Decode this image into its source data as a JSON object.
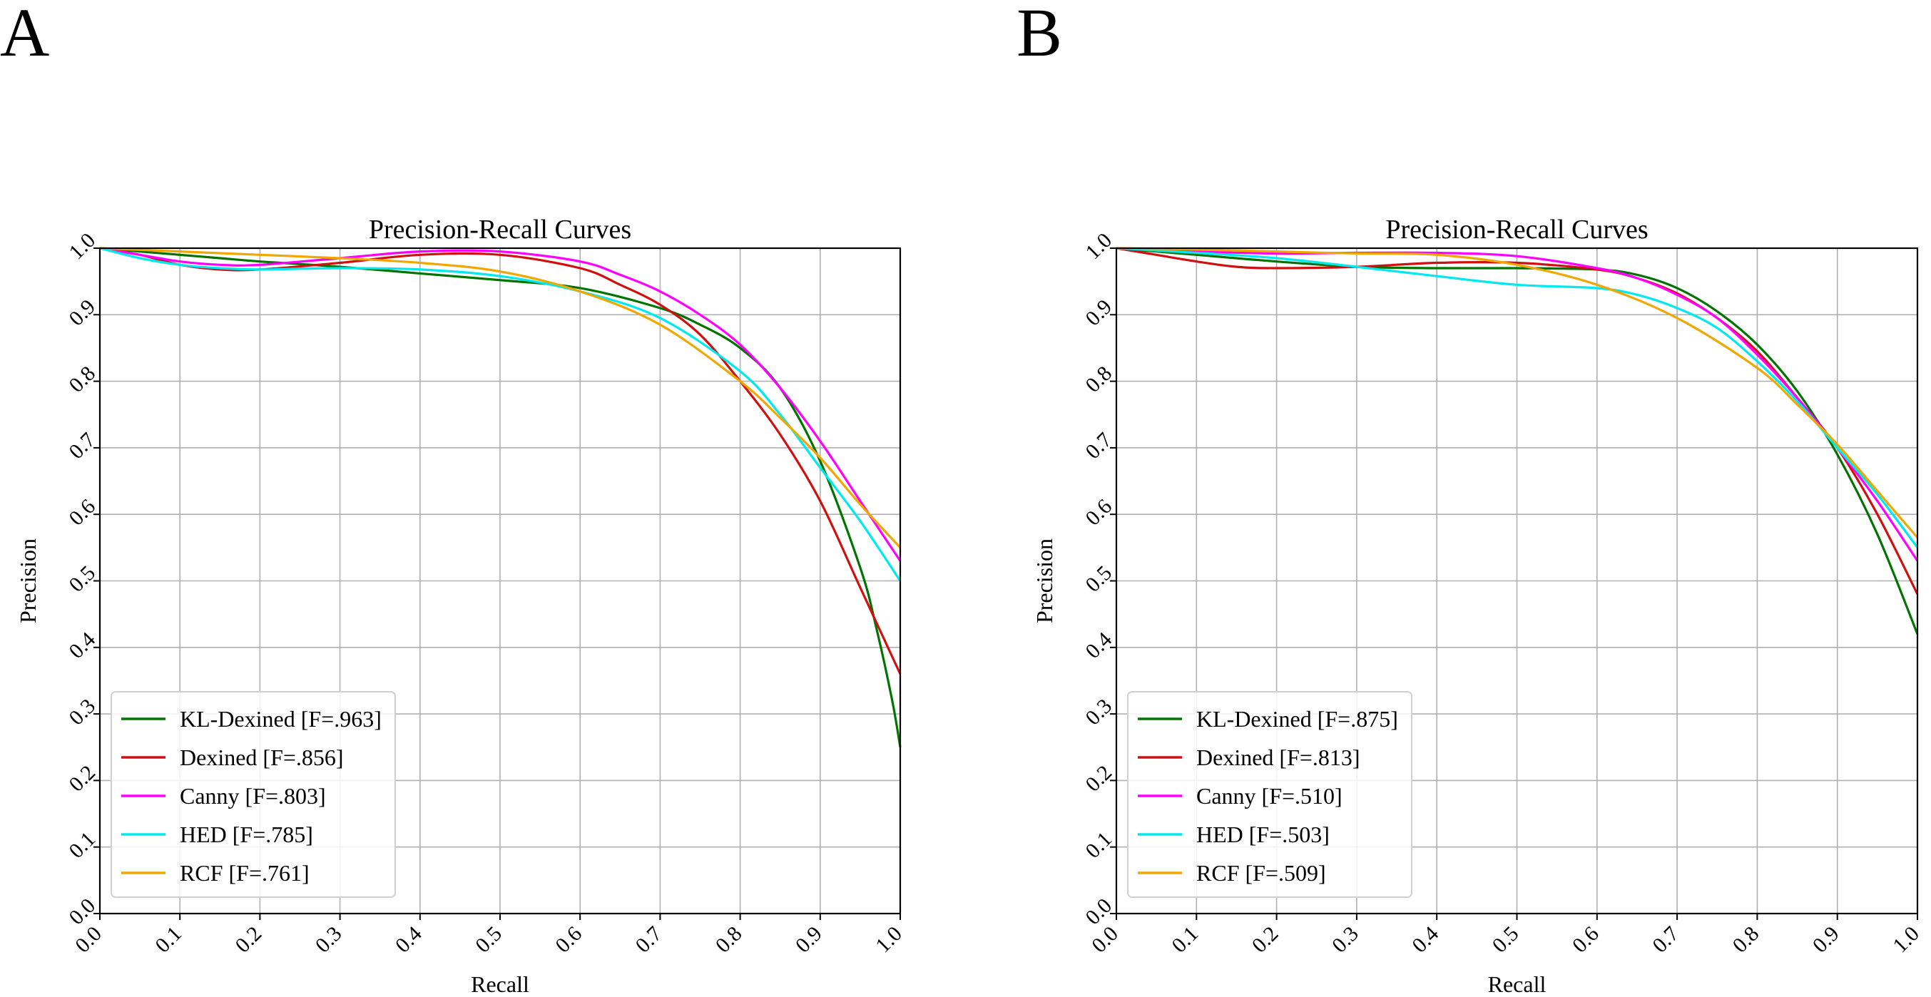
{
  "panels": {
    "a": "A",
    "b": "B"
  },
  "chart_data": [
    {
      "type": "line",
      "panel": "A",
      "title": "Precision-Recall Curves",
      "xlabel": "Recall",
      "ylabel": "Precision",
      "xlim": [
        0.0,
        1.0
      ],
      "ylim": [
        0.0,
        1.0
      ],
      "xticks": [
        "0.0",
        "0.1",
        "0.2",
        "0.3",
        "0.4",
        "0.5",
        "0.6",
        "0.7",
        "0.8",
        "0.9",
        "1.0"
      ],
      "yticks": [
        "0.0",
        "0.1",
        "0.2",
        "0.3",
        "0.4",
        "0.5",
        "0.6",
        "0.7",
        "0.8",
        "0.9",
        "1.0"
      ],
      "grid": true,
      "legend_position": "lower-left",
      "series": [
        {
          "name": "KL-Dexined [F=.963]",
          "color": "#007300",
          "x": [
            0,
            0.05,
            0.1,
            0.15,
            0.2,
            0.3,
            0.4,
            0.5,
            0.6,
            0.7,
            0.75,
            0.8,
            0.85,
            0.9,
            0.95,
            0.97,
            0.99,
            1.0
          ],
          "y": [
            1.0,
            0.995,
            0.99,
            0.985,
            0.98,
            0.972,
            0.962,
            0.952,
            0.94,
            0.91,
            0.885,
            0.85,
            0.79,
            0.68,
            0.52,
            0.43,
            0.32,
            0.25
          ]
        },
        {
          "name": "Dexined [F=.856]",
          "color": "#d01010",
          "x": [
            0,
            0.05,
            0.1,
            0.15,
            0.2,
            0.3,
            0.4,
            0.5,
            0.6,
            0.65,
            0.7,
            0.75,
            0.8,
            0.85,
            0.9,
            0.95,
            1.0
          ],
          "y": [
            1.0,
            0.99,
            0.975,
            0.968,
            0.968,
            0.978,
            0.99,
            0.99,
            0.97,
            0.945,
            0.915,
            0.87,
            0.8,
            0.72,
            0.62,
            0.49,
            0.36
          ]
        },
        {
          "name": "Canny [F=.803]",
          "color": "#ff00ff",
          "x": [
            0,
            0.05,
            0.1,
            0.15,
            0.2,
            0.3,
            0.4,
            0.5,
            0.6,
            0.65,
            0.7,
            0.75,
            0.8,
            0.85,
            0.9,
            0.95,
            1.0
          ],
          "y": [
            1.0,
            0.99,
            0.98,
            0.975,
            0.975,
            0.985,
            0.995,
            0.995,
            0.98,
            0.96,
            0.935,
            0.9,
            0.855,
            0.79,
            0.71,
            0.62,
            0.53
          ]
        },
        {
          "name": "HED [F=.785]",
          "color": "#00e8f0",
          "x": [
            0,
            0.05,
            0.1,
            0.15,
            0.2,
            0.3,
            0.4,
            0.5,
            0.6,
            0.7,
            0.8,
            0.85,
            0.9,
            0.95,
            1.0
          ],
          "y": [
            1.0,
            0.985,
            0.975,
            0.97,
            0.968,
            0.97,
            0.968,
            0.958,
            0.935,
            0.895,
            0.815,
            0.75,
            0.67,
            0.59,
            0.5
          ]
        },
        {
          "name": "RCF [F=.761]",
          "color": "#f0a800",
          "x": [
            0,
            0.1,
            0.2,
            0.3,
            0.4,
            0.5,
            0.6,
            0.7,
            0.8,
            0.85,
            0.9,
            0.95,
            1.0
          ],
          "y": [
            1.0,
            0.995,
            0.99,
            0.985,
            0.978,
            0.965,
            0.935,
            0.885,
            0.8,
            0.745,
            0.685,
            0.615,
            0.55
          ]
        }
      ]
    },
    {
      "type": "line",
      "panel": "B",
      "title": "Precision-Recall Curves",
      "xlabel": "Recall",
      "ylabel": "Precision",
      "xlim": [
        0.0,
        1.0
      ],
      "ylim": [
        0.0,
        1.0
      ],
      "xticks": [
        "0.0",
        "0.1",
        "0.2",
        "0.3",
        "0.4",
        "0.5",
        "0.6",
        "0.7",
        "0.8",
        "0.9",
        "1.0"
      ],
      "yticks": [
        "0.0",
        "0.1",
        "0.2",
        "0.3",
        "0.4",
        "0.5",
        "0.6",
        "0.7",
        "0.8",
        "0.9",
        "1.0"
      ],
      "grid": true,
      "legend_position": "lower-left",
      "series": [
        {
          "name": "KL-Dexined [F=.875]",
          "color": "#007300",
          "x": [
            0,
            0.05,
            0.1,
            0.2,
            0.3,
            0.4,
            0.5,
            0.6,
            0.65,
            0.7,
            0.75,
            0.8,
            0.85,
            0.9,
            0.95,
            1.0
          ],
          "y": [
            1.0,
            0.995,
            0.99,
            0.98,
            0.972,
            0.97,
            0.97,
            0.968,
            0.96,
            0.94,
            0.905,
            0.855,
            0.785,
            0.69,
            0.57,
            0.42
          ]
        },
        {
          "name": "Dexined [F=.813]",
          "color": "#d01010",
          "x": [
            0,
            0.05,
            0.1,
            0.15,
            0.2,
            0.3,
            0.4,
            0.5,
            0.6,
            0.65,
            0.7,
            0.75,
            0.8,
            0.85,
            0.9,
            0.95,
            1.0
          ],
          "y": [
            1.0,
            0.99,
            0.98,
            0.972,
            0.97,
            0.972,
            0.978,
            0.978,
            0.968,
            0.955,
            0.932,
            0.895,
            0.845,
            0.775,
            0.7,
            0.6,
            0.48
          ]
        },
        {
          "name": "Canny [F=.510]",
          "color": "#ff00ff",
          "x": [
            0,
            0.05,
            0.1,
            0.2,
            0.3,
            0.4,
            0.5,
            0.6,
            0.65,
            0.7,
            0.75,
            0.8,
            0.85,
            0.9,
            0.95,
            1.0
          ],
          "y": [
            1.0,
            0.998,
            0.995,
            0.992,
            0.993,
            0.993,
            0.988,
            0.97,
            0.955,
            0.93,
            0.895,
            0.84,
            0.775,
            0.7,
            0.62,
            0.53
          ]
        },
        {
          "name": "HED [F=.503]",
          "color": "#00e8f0",
          "x": [
            0,
            0.1,
            0.2,
            0.3,
            0.4,
            0.5,
            0.6,
            0.65,
            0.7,
            0.75,
            0.8,
            0.85,
            0.9,
            0.95,
            1.0
          ],
          "y": [
            1.0,
            0.993,
            0.985,
            0.972,
            0.958,
            0.945,
            0.94,
            0.93,
            0.91,
            0.88,
            0.83,
            0.77,
            0.7,
            0.63,
            0.55
          ]
        },
        {
          "name": "RCF [F=.509]",
          "color": "#f0a800",
          "x": [
            0,
            0.1,
            0.2,
            0.3,
            0.4,
            0.5,
            0.6,
            0.7,
            0.8,
            0.85,
            0.9,
            0.95,
            1.0
          ],
          "y": [
            1.0,
            0.998,
            0.995,
            0.992,
            0.99,
            0.975,
            0.945,
            0.895,
            0.82,
            0.765,
            0.705,
            0.635,
            0.565
          ]
        }
      ]
    }
  ]
}
